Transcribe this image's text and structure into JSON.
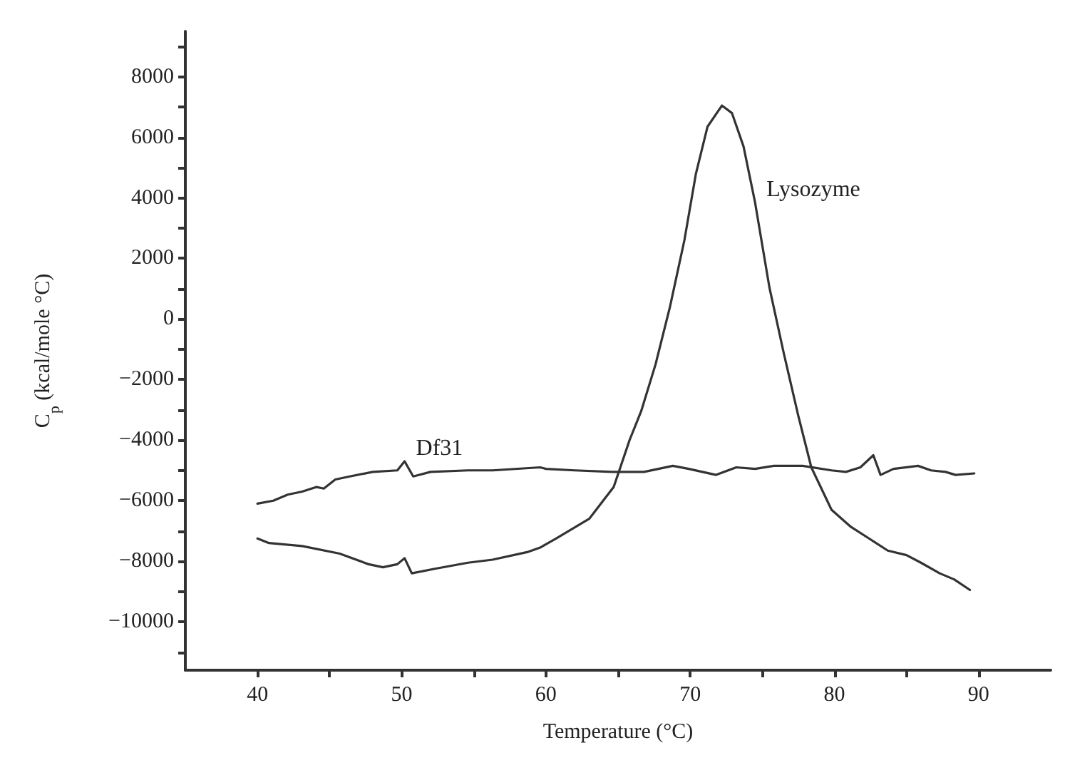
{
  "chart_data": {
    "type": "line",
    "xlabel": "Temperature (°C)",
    "ylabel": "C$_{p}$ (kcal/mole °C)",
    "xlim": [
      35,
      95
    ],
    "xticks": [
      40,
      {
        "value": 45,
        "label": null
      },
      50,
      {
        "value": 55,
        "label": null
      },
      60,
      {
        "value": 65,
        "label": null
      },
      70,
      {
        "value": 75,
        "label": null
      },
      80,
      {
        "value": 85,
        "label": null
      },
      90
    ],
    "ylim": [
      -11600,
      9500
    ],
    "yticks": [
      {
        "value": -11000,
        "label": null
      },
      {
        "value": -10000,
        "label": "−10000"
      },
      {
        "value": -9000,
        "label": null
      },
      {
        "value": -8000,
        "label": "−8000"
      },
      {
        "value": -7000,
        "label": null
      },
      {
        "value": -6000,
        "label": "−6000"
      },
      {
        "value": -5000,
        "label": null
      },
      {
        "value": -4000,
        "label": "−4000"
      },
      {
        "value": -3000,
        "label": null
      },
      {
        "value": -2000,
        "label": "−2000"
      },
      {
        "value": -1000,
        "label": null
      },
      0,
      {
        "value": 1000,
        "label": null
      },
      2000,
      {
        "value": 3000,
        "label": null
      },
      4000,
      {
        "value": 5000,
        "label": null
      },
      6000,
      {
        "value": 7000,
        "label": null
      },
      8000,
      {
        "value": 9000,
        "label": null
      }
    ],
    "grid": false,
    "marker": "none",
    "line_style": "solid",
    "annotations": [
      {
        "text": "Df31",
        "x": 50.2,
        "y": -4700
      },
      {
        "text": "Lysozyme",
        "x": 74.5,
        "y": 3850
      }
    ],
    "series": [
      {
        "color": "#333333",
        "x": [
          40,
          41.1,
          42.1,
          43.1,
          44.1,
          44.6,
          45.4,
          46.4,
          48,
          49.7,
          50.2,
          50.8,
          52,
          54.6,
          56.3,
          59.6,
          60,
          62,
          64.6,
          66.8,
          68.8,
          69.9,
          71.8,
          73.2,
          74.5,
          75.8,
          77.8,
          79.8,
          80.8,
          81.8,
          82.7,
          83.2,
          84.1,
          85.8,
          86.7,
          87.7,
          88.4,
          89.7
        ],
        "values": [
          -6100,
          -6000,
          -5800,
          -5700,
          -5550,
          -5600,
          -5300,
          -5200,
          -5050,
          -5000,
          -4700,
          -5200,
          -5050,
          -5000,
          -5000,
          -4900,
          -4950,
          -5000,
          -5050,
          -5050,
          -4850,
          -4950,
          -5150,
          -4900,
          -4950,
          -4850,
          -4850,
          -5000,
          -5050,
          -4900,
          -4500,
          -5150,
          -4950,
          -4850,
          -5000,
          -5050,
          -5150,
          -5100
        ]
      },
      {
        "color": "#333333",
        "x": [
          40,
          40.8,
          43.1,
          45.7,
          47.7,
          48.7,
          49.7,
          50.2,
          50.7,
          52.3,
          54.6,
          56.3,
          58.7,
          59.6,
          60.7,
          63,
          64.7,
          65.8,
          66.6,
          67.6,
          68.6,
          69.6,
          70.4,
          71.2,
          72.2,
          72.9,
          73.7,
          74.5,
          75.5,
          76.5,
          77.5,
          78.4,
          79.8,
          81.1,
          82.4,
          83.7,
          85,
          86,
          87.3,
          88.3,
          89.4
        ],
        "values": [
          -7250,
          -7400,
          -7500,
          -7750,
          -8100,
          -8200,
          -8100,
          -7900,
          -8400,
          -8250,
          -8050,
          -7950,
          -7700,
          -7550,
          -7250,
          -6600,
          -5550,
          -4000,
          -3050,
          -1500,
          400,
          2600,
          4800,
          6350,
          7050,
          6800,
          5700,
          3850,
          1030,
          -1150,
          -3200,
          -4900,
          -6300,
          -6850,
          -7250,
          -7650,
          -7800,
          -8050,
          -8400,
          -8600,
          -8950
        ]
      }
    ]
  }
}
